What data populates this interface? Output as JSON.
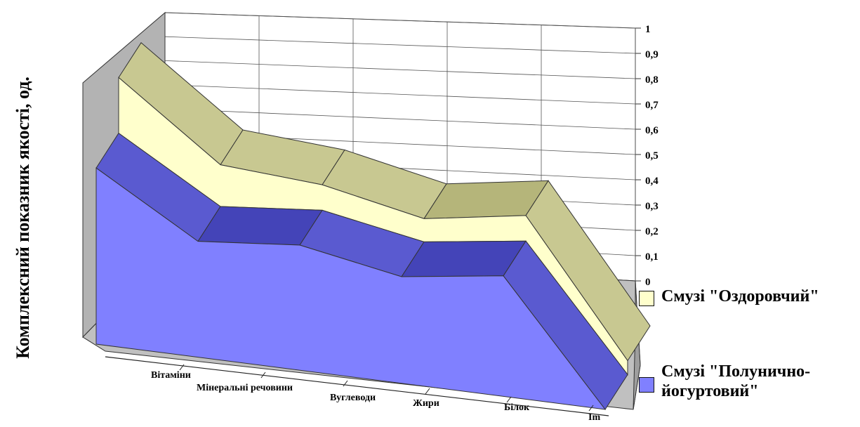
{
  "chart_data": {
    "type": "area",
    "subtype": "3d-stacked-area",
    "ylabel": "Комплексний показник якості, од.",
    "xlabel": "",
    "categories": [
      "Вітаміни",
      "Мінеральні речовини",
      "Вуглеводи",
      "Жири",
      "Білок",
      "Im"
    ],
    "yticks": [
      "0",
      "0,1",
      "0,2",
      "0,3",
      "0,4",
      "0,5",
      "0,6",
      "0,7",
      "0,8",
      "0,9",
      "1"
    ],
    "ylim": [
      0,
      1
    ],
    "grid": true,
    "legend_position": "right",
    "series": [
      {
        "name": "Смузі \"Полунично-йогуртовий\"",
        "values": [
          0.76,
          0.5,
          0.54,
          0.46,
          0.52,
          0.0
        ],
        "color": "#8080ff"
      },
      {
        "name": "Смузі \"Оздоровчий\"",
        "values": [
          0.24,
          0.18,
          0.11,
          0.1,
          0.11,
          0.06
        ],
        "color": "#ffffcc"
      }
    ]
  },
  "legend": {
    "items": [
      {
        "lines": [
          "Смузі \"Оздоровчий\""
        ],
        "color": "#ffffcc"
      },
      {
        "lines": [
          "Смузі \"Полунично-",
          "йогуртовий\""
        ],
        "color": "#8080ff"
      }
    ]
  }
}
